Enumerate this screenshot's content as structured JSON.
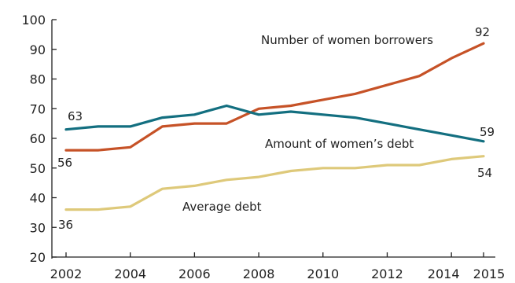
{
  "chart_data": {
    "type": "line",
    "x": [
      2002,
      2003,
      2004,
      2005,
      2006,
      2007,
      2008,
      2009,
      2010,
      2011,
      2012,
      2013,
      2014,
      2015
    ],
    "xticks": [
      2002,
      2004,
      2006,
      2008,
      2010,
      2012,
      2014,
      2015
    ],
    "xtick_labels": [
      "2002",
      "2004",
      "2006",
      "2008",
      "2010",
      "2012",
      "2014",
      "2015"
    ],
    "ylim": [
      20,
      100
    ],
    "yticks": [
      20,
      30,
      40,
      50,
      60,
      70,
      80,
      90,
      100
    ],
    "ytick_labels": [
      "20",
      "30",
      "40",
      "50",
      "60",
      "70",
      "80",
      "90",
      "100"
    ],
    "title": "",
    "xlabel": "",
    "ylabel": "",
    "grid": false,
    "series": [
      {
        "name": "Number of women borrowers",
        "color": "#c65227",
        "values": [
          56,
          56,
          57,
          64,
          65,
          65,
          70,
          71,
          73,
          75,
          78,
          81,
          87,
          92
        ]
      },
      {
        "name": "Amount of women’s debt",
        "color": "#136f80",
        "values": [
          63,
          64,
          64,
          67,
          68,
          71,
          68,
          69,
          68,
          67,
          65,
          63,
          61,
          59
        ]
      },
      {
        "name": "Average debt",
        "color": "#dec97a",
        "values": [
          36,
          36,
          37,
          43,
          44,
          46,
          47,
          49,
          50,
          50,
          51,
          51,
          53,
          54
        ]
      }
    ],
    "data_labels": [
      {
        "series": 0,
        "text": "56"
      },
      {
        "series": 0,
        "text": "92"
      },
      {
        "series": 1,
        "text": "63"
      },
      {
        "series": 1,
        "text": "59"
      },
      {
        "series": 2,
        "text": "36"
      },
      {
        "series": 2,
        "text": "54"
      }
    ]
  }
}
